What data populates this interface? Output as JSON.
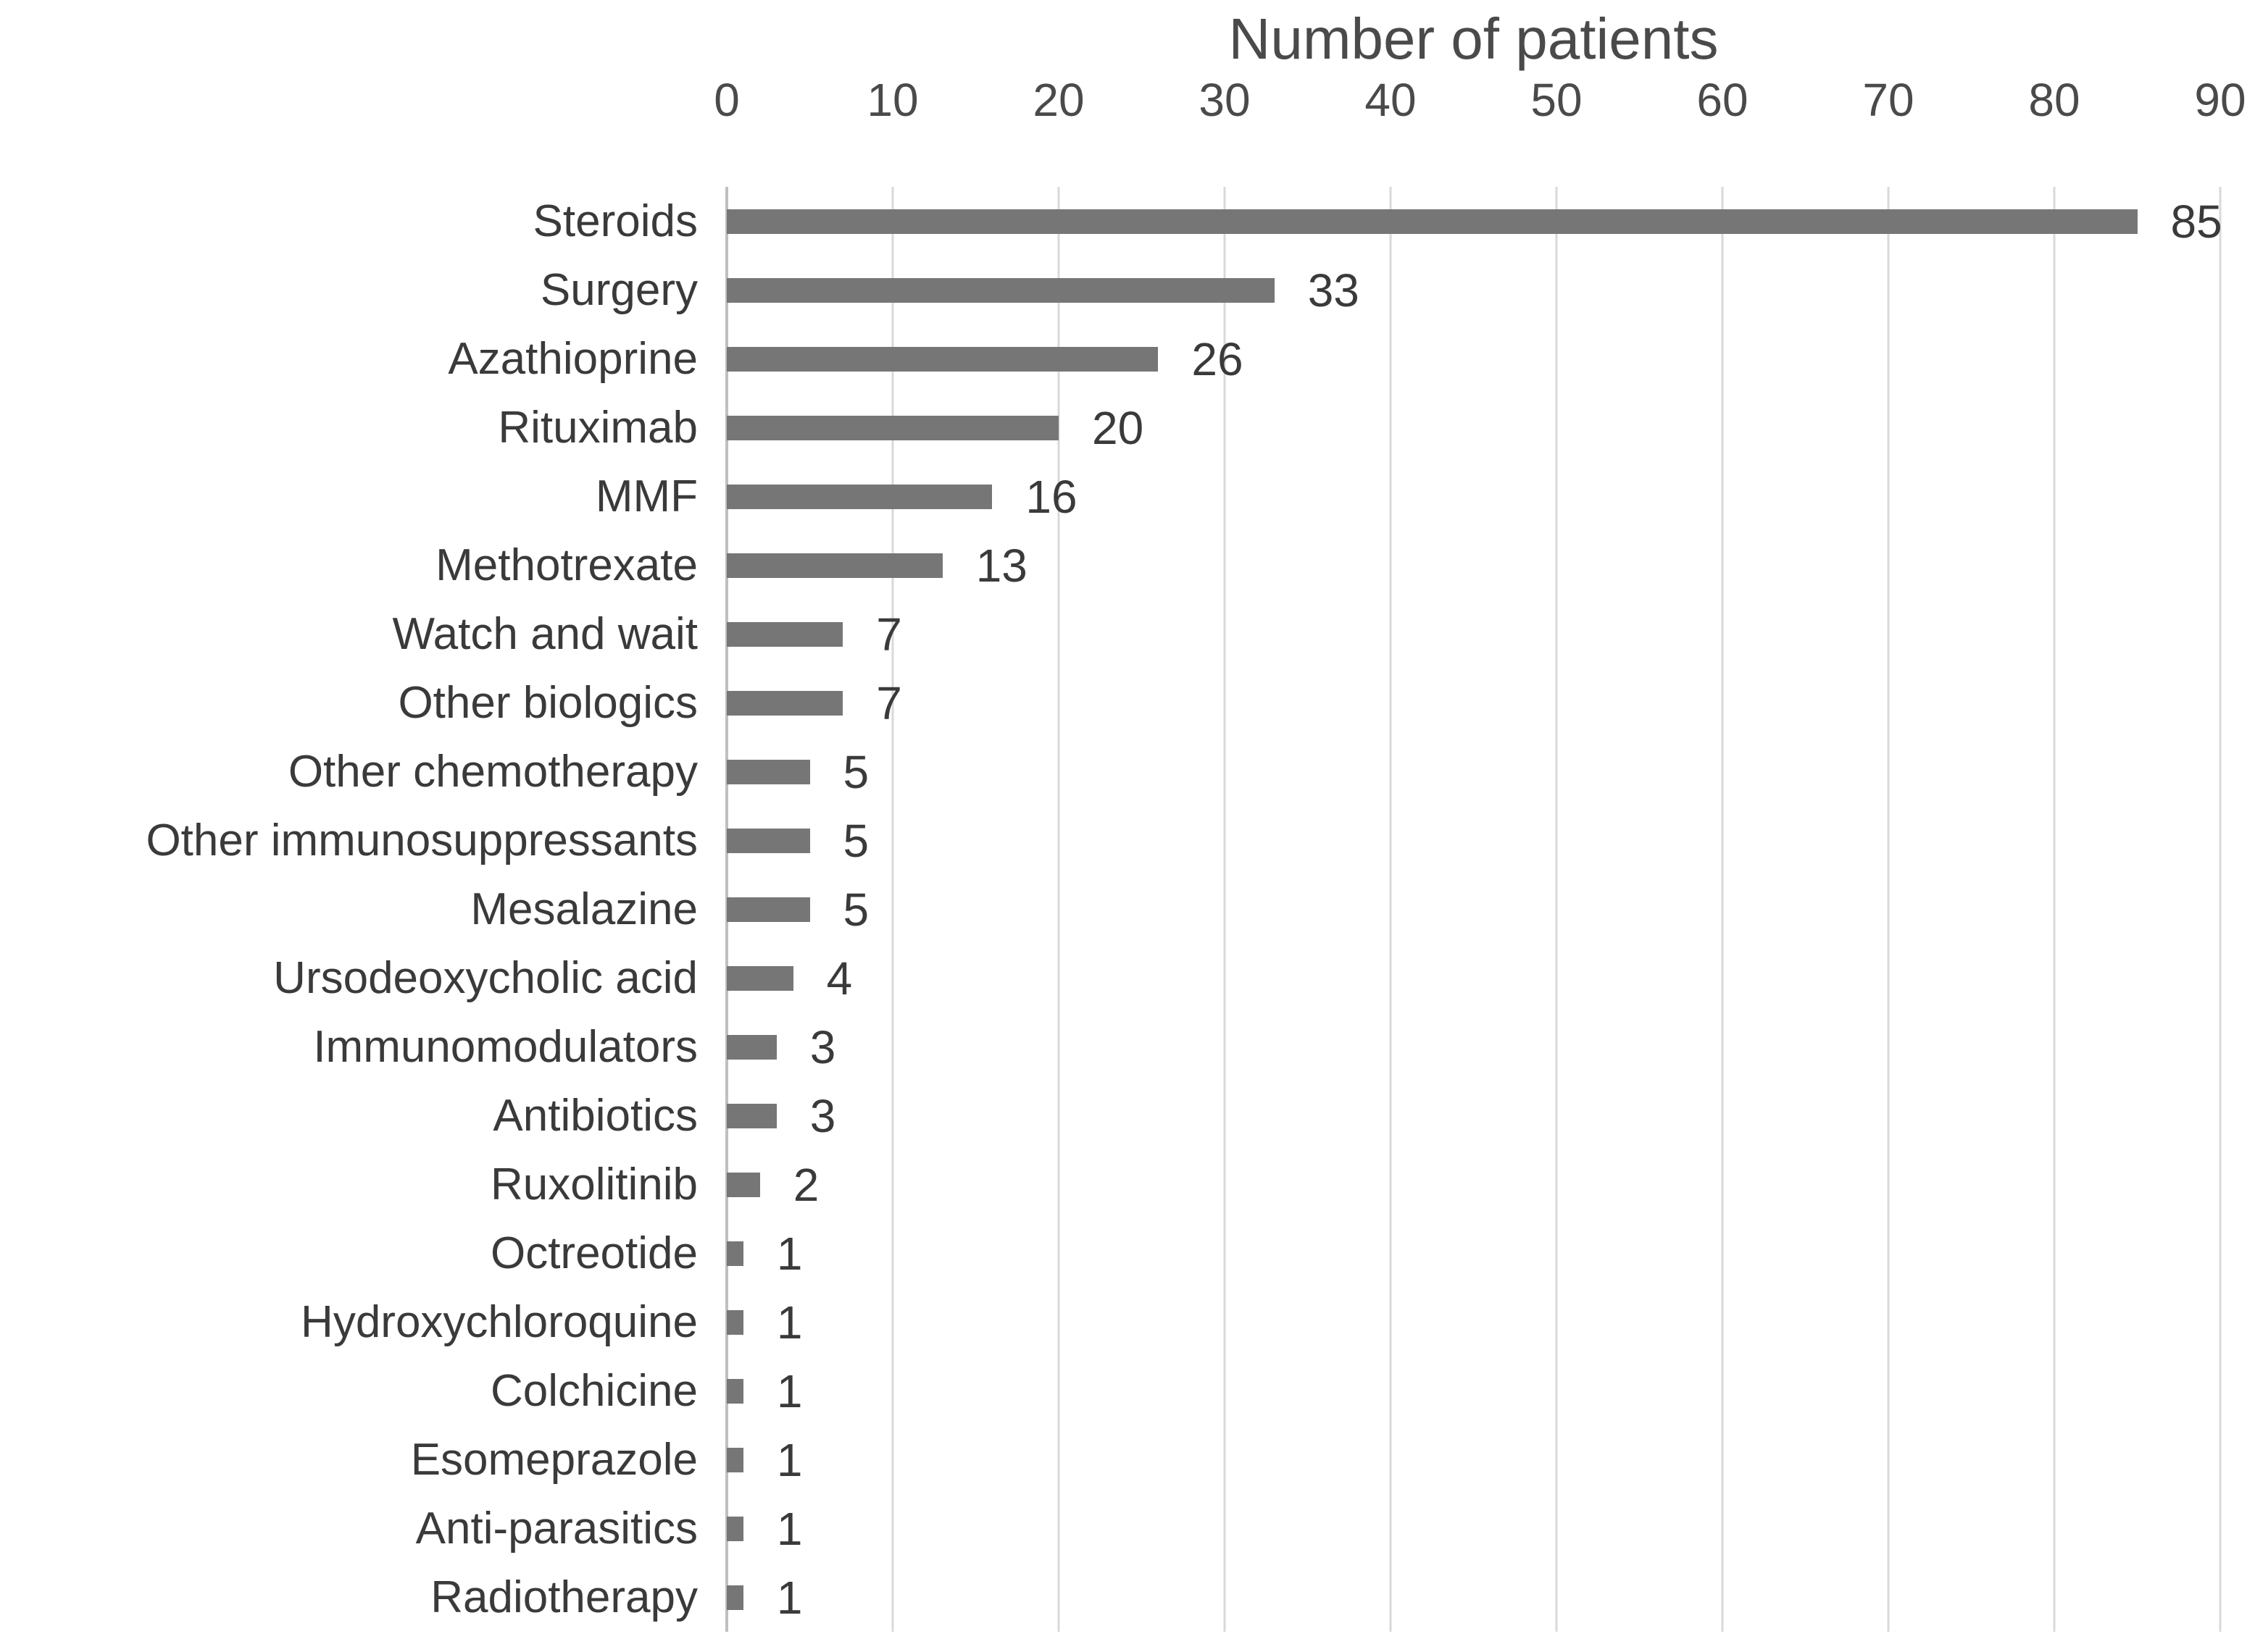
{
  "chart_data": {
    "type": "bar",
    "orientation": "horizontal",
    "title": "Number of patients",
    "categories": [
      "Steroids",
      "Surgery",
      "Azathioprine",
      "Rituximab",
      "MMF",
      "Methotrexate",
      "Watch and wait",
      "Other biologics",
      "Other chemotherapy",
      "Other immunosuppressants",
      "Mesalazine",
      "Ursodeoxycholic acid",
      "Immunomodulators",
      "Antibiotics",
      "Ruxolitinib",
      "Octreotide",
      "Hydroxychloroquine",
      "Colchicine",
      "Esomeprazole",
      "Anti-parasitics",
      "Radiotherapy"
    ],
    "values": [
      85,
      33,
      26,
      20,
      16,
      13,
      7,
      7,
      5,
      5,
      5,
      4,
      3,
      3,
      2,
      1,
      1,
      1,
      1,
      1,
      1
    ],
    "x_ticks": [
      0,
      10,
      20,
      30,
      40,
      50,
      60,
      70,
      80,
      90
    ],
    "xlim": [
      0,
      90
    ],
    "xlabel": "",
    "ylabel": "",
    "grid": "vertical",
    "legend": "none",
    "data_labels": true,
    "colors": {
      "bar": "#767676",
      "gridline": "#d9d9d9",
      "axis_line": "#bfbfbf",
      "label_text": "#3a3a3a",
      "tick_text": "#4a4a4a",
      "title_text": "#4a4a4a",
      "background": "#ffffff"
    }
  }
}
